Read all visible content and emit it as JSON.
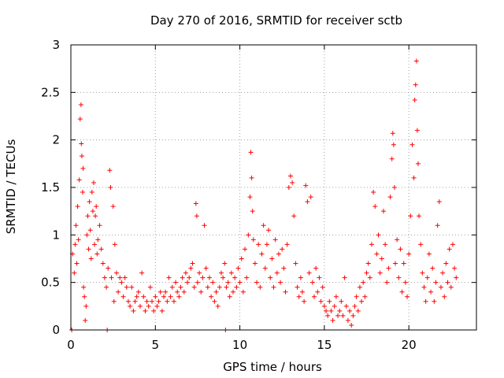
{
  "chart_data": {
    "type": "scatter",
    "title": "Day 270 of 2016, SRMTID for receiver sctb",
    "xlabel": "GPS time / hours",
    "ylabel": "SRMTID / TECUs",
    "xlim": [
      0,
      24
    ],
    "ylim": [
      0,
      3
    ],
    "xticks": [
      0,
      5,
      10,
      15,
      20
    ],
    "xtick_labels": [
      "0",
      "5",
      "10",
      "15",
      "20"
    ],
    "yticks": [
      0,
      0.5,
      1,
      1.5,
      2,
      2.5,
      3
    ],
    "ytick_labels": [
      "0",
      "0.5",
      "1",
      "1.5",
      "2",
      "2.5",
      "3"
    ],
    "grid": true,
    "marker": "+",
    "color": "#ff0000",
    "series": [
      {
        "name": "SRMTID",
        "points": [
          [
            0.05,
            0.0
          ],
          [
            0.1,
            0.8
          ],
          [
            0.2,
            0.6
          ],
          [
            0.25,
            0.9
          ],
          [
            0.3,
            1.1
          ],
          [
            0.35,
            0.7
          ],
          [
            0.4,
            1.3
          ],
          [
            0.45,
            0.95
          ],
          [
            0.5,
            1.58
          ],
          [
            0.55,
            2.22
          ],
          [
            0.6,
            2.37
          ],
          [
            0.62,
            1.96
          ],
          [
            0.65,
            1.83
          ],
          [
            0.7,
            1.45
          ],
          [
            0.72,
            1.7
          ],
          [
            0.75,
            0.45
          ],
          [
            0.8,
            0.35
          ],
          [
            0.85,
            0.1
          ],
          [
            0.9,
            0.25
          ],
          [
            0.95,
            1.0
          ],
          [
            1.0,
            1.2
          ],
          [
            1.05,
            0.85
          ],
          [
            1.1,
            1.35
          ],
          [
            1.15,
            1.05
          ],
          [
            1.2,
            0.75
          ],
          [
            1.25,
            1.45
          ],
          [
            1.3,
            1.25
          ],
          [
            1.35,
            1.55
          ],
          [
            1.4,
            0.9
          ],
          [
            1.45,
            1.2
          ],
          [
            1.5,
            1.3
          ],
          [
            1.55,
            0.8
          ],
          [
            1.6,
            0.95
          ],
          [
            1.7,
            1.1
          ],
          [
            1.8,
            0.85
          ],
          [
            1.9,
            0.7
          ],
          [
            2.0,
            0.55
          ],
          [
            2.1,
            0.45
          ],
          [
            2.15,
            0.0
          ],
          [
            2.2,
            0.65
          ],
          [
            2.3,
            1.68
          ],
          [
            2.35,
            1.5
          ],
          [
            2.4,
            0.55
          ],
          [
            2.5,
            1.3
          ],
          [
            2.55,
            0.3
          ],
          [
            2.6,
            0.9
          ],
          [
            2.7,
            0.6
          ],
          [
            2.8,
            0.4
          ],
          [
            2.9,
            0.55
          ],
          [
            3.0,
            0.5
          ],
          [
            3.1,
            0.35
          ],
          [
            3.2,
            0.55
          ],
          [
            3.3,
            0.45
          ],
          [
            3.4,
            0.3
          ],
          [
            3.5,
            0.25
          ],
          [
            3.6,
            0.45
          ],
          [
            3.7,
            0.2
          ],
          [
            3.8,
            0.3
          ],
          [
            3.9,
            0.35
          ],
          [
            4.0,
            0.4
          ],
          [
            4.1,
            0.25
          ],
          [
            4.2,
            0.6
          ],
          [
            4.3,
            0.35
          ],
          [
            4.4,
            0.2
          ],
          [
            4.5,
            0.3
          ],
          [
            4.6,
            0.25
          ],
          [
            4.7,
            0.45
          ],
          [
            4.8,
            0.3
          ],
          [
            4.9,
            0.2
          ],
          [
            5.0,
            0.35
          ],
          [
            5.1,
            0.25
          ],
          [
            5.2,
            0.3
          ],
          [
            5.3,
            0.4
          ],
          [
            5.4,
            0.2
          ],
          [
            5.5,
            0.35
          ],
          [
            5.6,
            0.4
          ],
          [
            5.7,
            0.3
          ],
          [
            5.8,
            0.55
          ],
          [
            5.9,
            0.35
          ],
          [
            6.0,
            0.45
          ],
          [
            6.1,
            0.3
          ],
          [
            6.2,
            0.5
          ],
          [
            6.3,
            0.4
          ],
          [
            6.4,
            0.35
          ],
          [
            6.5,
            0.45
          ],
          [
            6.6,
            0.55
          ],
          [
            6.7,
            0.4
          ],
          [
            6.8,
            0.6
          ],
          [
            6.9,
            0.5
          ],
          [
            7.0,
            0.55
          ],
          [
            7.1,
            0.65
          ],
          [
            7.2,
            0.7
          ],
          [
            7.3,
            0.45
          ],
          [
            7.4,
            1.33
          ],
          [
            7.45,
            1.2
          ],
          [
            7.5,
            0.5
          ],
          [
            7.6,
            0.6
          ],
          [
            7.7,
            0.4
          ],
          [
            7.8,
            0.55
          ],
          [
            7.9,
            1.1
          ],
          [
            8.0,
            0.65
          ],
          [
            8.1,
            0.45
          ],
          [
            8.2,
            0.55
          ],
          [
            8.3,
            0.35
          ],
          [
            8.4,
            0.5
          ],
          [
            8.5,
            0.3
          ],
          [
            8.6,
            0.4
          ],
          [
            8.7,
            0.25
          ],
          [
            8.8,
            0.45
          ],
          [
            8.9,
            0.6
          ],
          [
            9.0,
            0.55
          ],
          [
            9.1,
            0.7
          ],
          [
            9.15,
            0.0
          ],
          [
            9.2,
            0.45
          ],
          [
            9.3,
            0.5
          ],
          [
            9.4,
            0.35
          ],
          [
            9.5,
            0.6
          ],
          [
            9.6,
            0.4
          ],
          [
            9.7,
            0.55
          ],
          [
            9.8,
            0.45
          ],
          [
            9.9,
            0.65
          ],
          [
            10.0,
            0.5
          ],
          [
            10.1,
            0.75
          ],
          [
            10.2,
            0.4
          ],
          [
            10.3,
            0.85
          ],
          [
            10.4,
            0.55
          ],
          [
            10.5,
            1.0
          ],
          [
            10.6,
            1.4
          ],
          [
            10.65,
            1.87
          ],
          [
            10.7,
            1.6
          ],
          [
            10.75,
            1.25
          ],
          [
            10.8,
            0.95
          ],
          [
            10.9,
            0.7
          ],
          [
            11.0,
            0.5
          ],
          [
            11.1,
            0.9
          ],
          [
            11.2,
            0.45
          ],
          [
            11.3,
            0.8
          ],
          [
            11.4,
            1.1
          ],
          [
            11.5,
            0.65
          ],
          [
            11.6,
            0.9
          ],
          [
            11.7,
            1.05
          ],
          [
            11.8,
            0.55
          ],
          [
            11.9,
            0.75
          ],
          [
            12.0,
            0.45
          ],
          [
            12.1,
            0.95
          ],
          [
            12.2,
            0.6
          ],
          [
            12.3,
            0.8
          ],
          [
            12.4,
            0.5
          ],
          [
            12.5,
            0.85
          ],
          [
            12.6,
            0.65
          ],
          [
            12.7,
            0.4
          ],
          [
            12.8,
            0.9
          ],
          [
            12.9,
            1.5
          ],
          [
            13.0,
            1.62
          ],
          [
            13.1,
            1.55
          ],
          [
            13.2,
            1.2
          ],
          [
            13.3,
            0.7
          ],
          [
            13.4,
            0.45
          ],
          [
            13.5,
            0.35
          ],
          [
            13.6,
            0.55
          ],
          [
            13.7,
            0.4
          ],
          [
            13.8,
            0.3
          ],
          [
            13.9,
            1.52
          ],
          [
            14.0,
            1.35
          ],
          [
            14.1,
            0.6
          ],
          [
            14.2,
            1.4
          ],
          [
            14.3,
            0.5
          ],
          [
            14.4,
            0.35
          ],
          [
            14.5,
            0.65
          ],
          [
            14.6,
            0.4
          ],
          [
            14.7,
            0.55
          ],
          [
            14.8,
            0.3
          ],
          [
            14.9,
            0.45
          ],
          [
            15.0,
            0.25
          ],
          [
            15.1,
            0.2
          ],
          [
            15.2,
            0.15
          ],
          [
            15.3,
            0.3
          ],
          [
            15.4,
            0.2
          ],
          [
            15.5,
            0.1
          ],
          [
            15.6,
            0.25
          ],
          [
            15.7,
            0.35
          ],
          [
            15.8,
            0.15
          ],
          [
            15.9,
            0.2
          ],
          [
            16.0,
            0.3
          ],
          [
            16.1,
            0.15
          ],
          [
            16.2,
            0.55
          ],
          [
            16.3,
            0.25
          ],
          [
            16.4,
            0.1
          ],
          [
            16.5,
            0.2
          ],
          [
            16.6,
            0.05
          ],
          [
            16.7,
            0.15
          ],
          [
            16.8,
            0.25
          ],
          [
            16.9,
            0.35
          ],
          [
            17.0,
            0.2
          ],
          [
            17.1,
            0.45
          ],
          [
            17.2,
            0.3
          ],
          [
            17.3,
            0.5
          ],
          [
            17.4,
            0.35
          ],
          [
            17.5,
            0.6
          ],
          [
            17.6,
            0.7
          ],
          [
            17.7,
            0.55
          ],
          [
            17.8,
            0.9
          ],
          [
            17.9,
            1.45
          ],
          [
            18.0,
            1.3
          ],
          [
            18.1,
            0.8
          ],
          [
            18.2,
            1.0
          ],
          [
            18.3,
            0.6
          ],
          [
            18.4,
            0.75
          ],
          [
            18.5,
            1.25
          ],
          [
            18.6,
            0.9
          ],
          [
            18.7,
            0.5
          ],
          [
            18.8,
            0.65
          ],
          [
            18.9,
            1.4
          ],
          [
            19.0,
            1.8
          ],
          [
            19.05,
            2.07
          ],
          [
            19.1,
            1.95
          ],
          [
            19.15,
            1.5
          ],
          [
            19.2,
            0.7
          ],
          [
            19.3,
            0.95
          ],
          [
            19.4,
            0.55
          ],
          [
            19.5,
            0.85
          ],
          [
            19.6,
            0.4
          ],
          [
            19.7,
            0.7
          ],
          [
            19.8,
            0.5
          ],
          [
            19.9,
            0.35
          ],
          [
            20.0,
            0.8
          ],
          [
            20.1,
            1.2
          ],
          [
            20.2,
            1.95
          ],
          [
            20.3,
            1.6
          ],
          [
            20.35,
            2.42
          ],
          [
            20.4,
            2.58
          ],
          [
            20.45,
            2.83
          ],
          [
            20.5,
            2.1
          ],
          [
            20.55,
            1.75
          ],
          [
            20.6,
            1.2
          ],
          [
            20.7,
            0.9
          ],
          [
            20.8,
            0.6
          ],
          [
            20.9,
            0.45
          ],
          [
            21.0,
            0.3
          ],
          [
            21.1,
            0.55
          ],
          [
            21.2,
            0.8
          ],
          [
            21.3,
            0.4
          ],
          [
            21.4,
            0.65
          ],
          [
            21.5,
            0.3
          ],
          [
            21.6,
            0.5
          ],
          [
            21.7,
            1.1
          ],
          [
            21.8,
            1.35
          ],
          [
            21.9,
            0.45
          ],
          [
            22.0,
            0.6
          ],
          [
            22.1,
            0.35
          ],
          [
            22.2,
            0.7
          ],
          [
            22.3,
            0.5
          ],
          [
            22.4,
            0.85
          ],
          [
            22.5,
            0.45
          ],
          [
            22.6,
            0.9
          ],
          [
            22.7,
            0.65
          ],
          [
            22.8,
            0.55
          ]
        ]
      }
    ]
  }
}
